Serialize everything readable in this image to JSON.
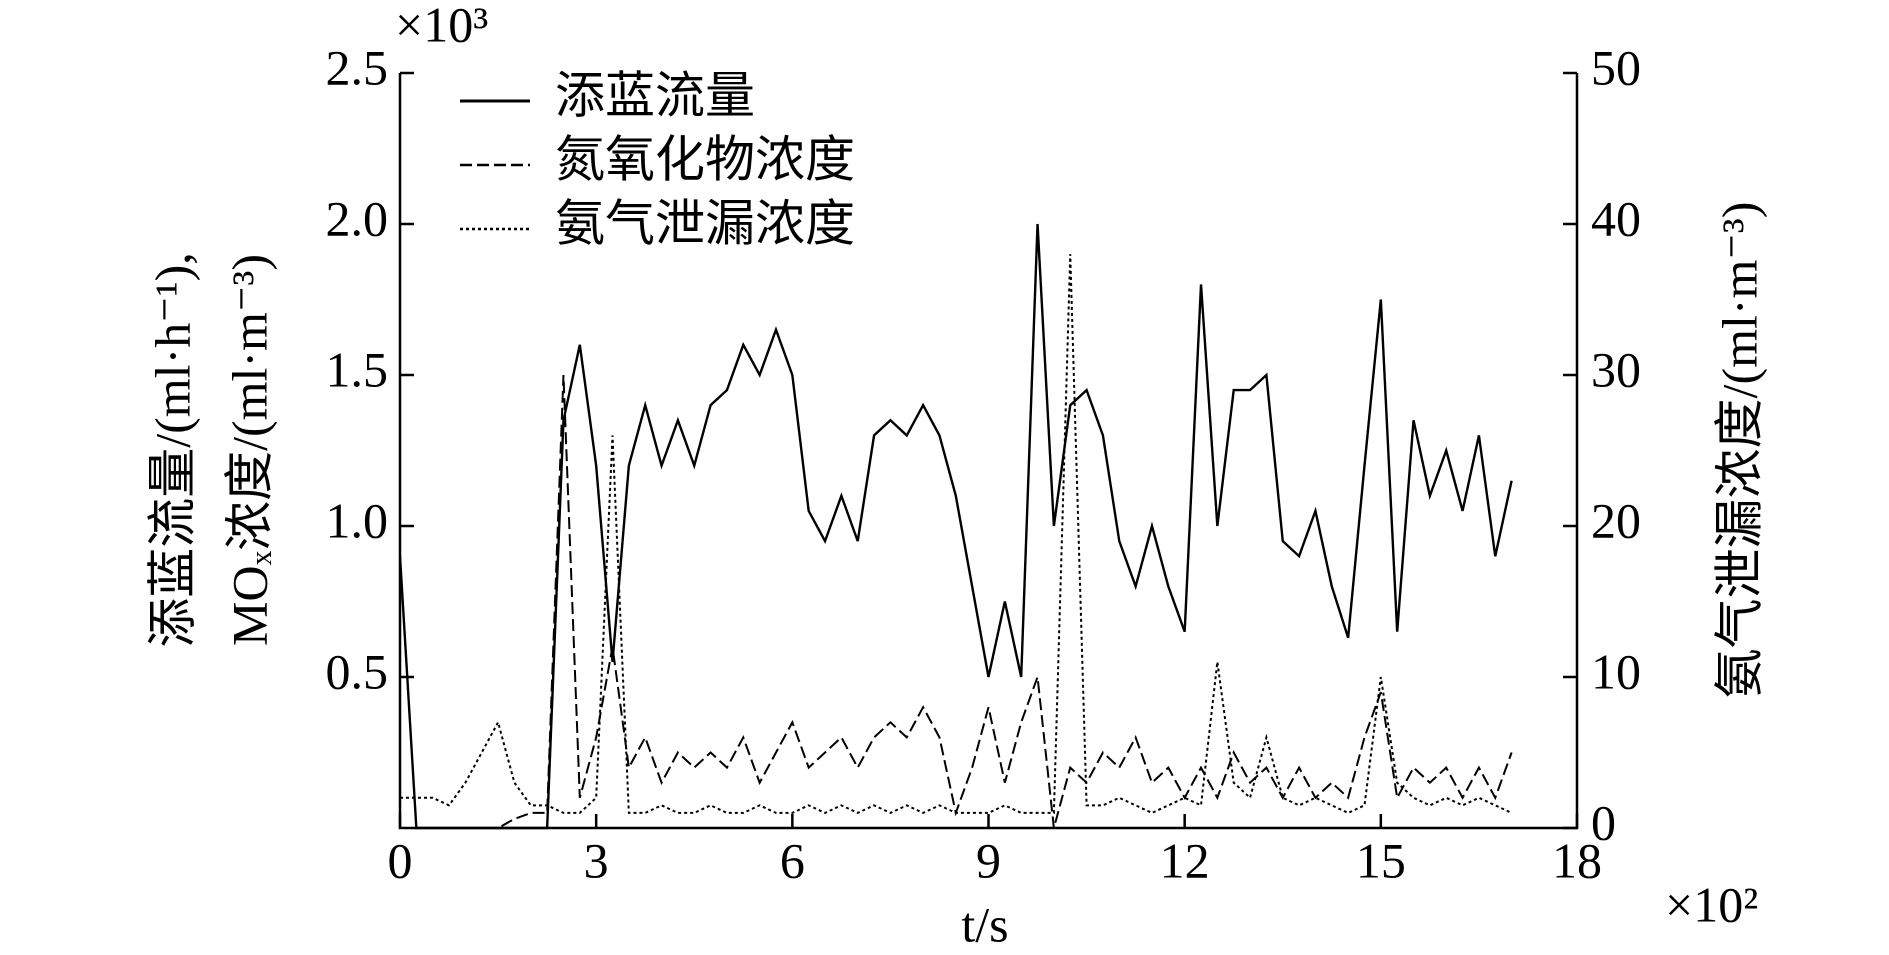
{
  "chart_data": {
    "type": "line",
    "xlabel": "t/s",
    "x_multiplier": "×10²",
    "ylabel": [
      "添蓝流量/(ml·h⁻¹),",
      "MOₓ浓度/(ml·m⁻³)"
    ],
    "y_multiplier": "×10³",
    "y2label": "氨气泄漏浓度/(ml·m⁻³)",
    "xlim": [
      0,
      18
    ],
    "xticks": [
      0,
      3,
      6,
      9,
      12,
      15,
      18
    ],
    "ylim": [
      0,
      2.5
    ],
    "yticks": [
      0.5,
      {
        "value": 1,
        "label": "1.0"
      },
      1.5,
      {
        "value": 2,
        "label": "2.0"
      },
      2.5
    ],
    "y2lim": [
      0,
      50
    ],
    "y2ticks": [
      0,
      10,
      20,
      30,
      40,
      50
    ],
    "legend": "upper left",
    "x": [
      0,
      0.25,
      0.5,
      0.75,
      1,
      1.25,
      1.5,
      1.75,
      2,
      2.25,
      2.5,
      2.75,
      3,
      3.25,
      3.5,
      3.75,
      4,
      4.25,
      4.5,
      4.75,
      5,
      5.25,
      5.5,
      5.75,
      6,
      6.25,
      6.5,
      6.75,
      7,
      7.25,
      7.5,
      7.75,
      8,
      8.25,
      8.5,
      8.75,
      9,
      9.25,
      9.5,
      9.75,
      10,
      10.25,
      10.5,
      10.75,
      11,
      11.25,
      11.5,
      11.75,
      12,
      12.25,
      12.5,
      12.75,
      13,
      13.25,
      13.5,
      13.75,
      14,
      14.25,
      14.5,
      14.75,
      15,
      15.25,
      15.5,
      15.75,
      16,
      16.25,
      16.5,
      16.75,
      17
    ],
    "series": [
      {
        "name": "添蓝流量",
        "color": "#000000",
        "dash": "solid",
        "values": [
          0.9,
          0,
          0,
          0,
          0,
          0,
          0,
          0,
          0,
          0,
          1.35,
          1.6,
          1.2,
          0.55,
          1.2,
          1.4,
          1.2,
          1.35,
          1.2,
          1.4,
          1.45,
          1.6,
          1.5,
          1.65,
          1.5,
          1.05,
          0.95,
          1.1,
          0.95,
          1.3,
          1.35,
          1.3,
          1.4,
          1.3,
          1.1,
          0.8,
          0.5,
          0.75,
          0.5,
          2.0,
          1.0,
          1.4,
          1.45,
          1.3,
          0.95,
          0.8,
          1.0,
          0.8,
          0.65,
          1.8,
          1.0,
          1.45,
          1.45,
          1.5,
          0.95,
          0.9,
          1.05,
          0.8,
          0.63,
          1.2,
          1.75,
          0.65,
          1.35,
          1.1,
          1.25,
          1.05,
          1.3,
          0.9,
          1.15
        ]
      },
      {
        "name": "氮氧化物浓度",
        "color": "#000000",
        "dash": "dashed",
        "values": [
          0,
          0,
          0,
          0,
          0,
          0,
          0,
          0.03,
          0.05,
          0.05,
          1.5,
          0.1,
          0.3,
          0.6,
          0.2,
          0.3,
          0.15,
          0.25,
          0.2,
          0.25,
          0.2,
          0.3,
          0.15,
          0.25,
          0.35,
          0.2,
          0.25,
          0.3,
          0.2,
          0.3,
          0.35,
          0.3,
          0.4,
          0.3,
          0.05,
          0.2,
          0.4,
          0.15,
          0.35,
          0.5,
          0,
          0.2,
          0.15,
          0.25,
          0.2,
          0.3,
          0.15,
          0.2,
          0.1,
          0.2,
          0.1,
          0.25,
          0.15,
          0.2,
          0.1,
          0.2,
          0.1,
          0.15,
          0.1,
          0.3,
          0.45,
          0.1,
          0.2,
          0.15,
          0.2,
          0.1,
          0.2,
          0.1,
          0.25
        ]
      },
      {
        "name": "氨气泄漏浓度",
        "color": "#000000",
        "dash": "dotted",
        "axis": "y2",
        "values": [
          2,
          2,
          2,
          1.5,
          3,
          5,
          7,
          3,
          1.5,
          1.5,
          1,
          1,
          2,
          26,
          1,
          1,
          1.5,
          1,
          1,
          1.5,
          1,
          1,
          1.5,
          1,
          1,
          1.5,
          1,
          1.5,
          1,
          1.5,
          1,
          1.5,
          1,
          1.5,
          1,
          1,
          1,
          1.5,
          1,
          1,
          1,
          38,
          1.5,
          1.5,
          2,
          1.5,
          1,
          1.5,
          2,
          1.5,
          11,
          3,
          2,
          6,
          2,
          1.5,
          2,
          1.5,
          1,
          1.5,
          10,
          3,
          2,
          1.5,
          2,
          1.5,
          2,
          1.5,
          1
        ]
      }
    ]
  }
}
